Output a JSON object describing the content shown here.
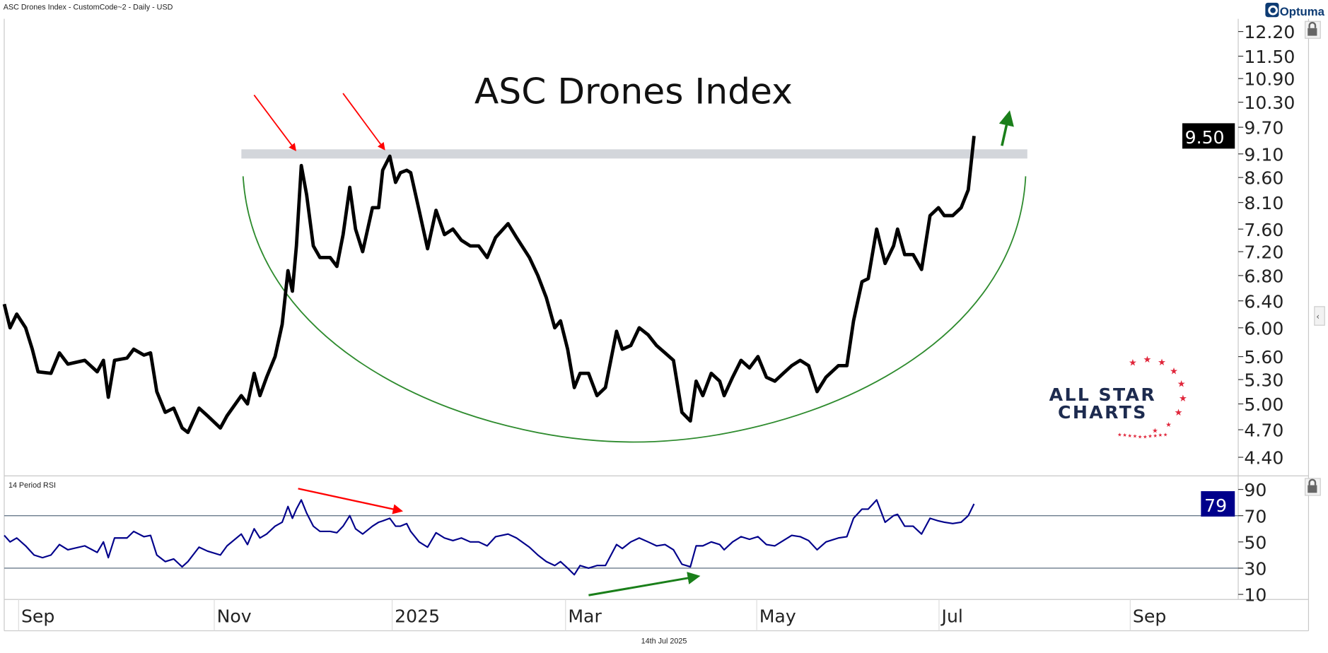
{
  "header": {
    "caption": "ASC Drones Index - CustomCode~2 - Daily - USD",
    "brand": "Optuma"
  },
  "footer": {
    "date": "14th Jul 2025"
  },
  "logo": {
    "line1": "ALL STAR",
    "line2": "CHARTS"
  },
  "colors": {
    "price": "#000000",
    "rsi": "#00008b",
    "arc": "#2e8b2e",
    "band": "#c8ccd2",
    "red_arrow": "#ff0000",
    "green_arrow": "#1a7f1a",
    "rsi_badge": "#00008b",
    "ref_line": "#6b7b8c",
    "logo_text": "#1d2b4f",
    "logo_star": "#e0253a"
  },
  "chart_data": [
    {
      "type": "line",
      "title": "ASC Drones Index",
      "series_name": "ASC Drones Index",
      "scale": "log",
      "ylim": [
        4.4,
        12.2
      ],
      "yticks": [
        "12.20",
        "11.50",
        "10.90",
        "10.30",
        "9.70",
        "9.10",
        "8.60",
        "8.10",
        "7.60",
        "7.20",
        "6.80",
        "6.40",
        "6.00",
        "5.60",
        "5.30",
        "5.00",
        "4.70",
        "4.40"
      ],
      "last_value_label": "9.50",
      "resistance_band": [
        9.0,
        9.2
      ],
      "x_unit": "trading days from early Sep 2024",
      "xticks": [
        {
          "label": "Sep",
          "x": 0
        },
        {
          "label": "Nov",
          "x": 44
        },
        {
          "label": "2025",
          "x": 84
        },
        {
          "label": "Mar",
          "x": 123
        },
        {
          "label": "May",
          "x": 166
        },
        {
          "label": "Jul",
          "x": 207
        },
        {
          "label": "Sep",
          "x": 250
        }
      ],
      "points": [
        [
          -3.8,
          6.35
        ],
        [
          -2.5,
          6.0
        ],
        [
          -1,
          6.2
        ],
        [
          1,
          6.0
        ],
        [
          2.5,
          5.7
        ],
        [
          3.8,
          5.4
        ],
        [
          6.7,
          5.38
        ],
        [
          8.6,
          5.65
        ],
        [
          10.5,
          5.5
        ],
        [
          14.3,
          5.55
        ],
        [
          17.1,
          5.4
        ],
        [
          18.5,
          5.55
        ],
        [
          19.6,
          5.08
        ],
        [
          21,
          5.55
        ],
        [
          23.8,
          5.58
        ],
        [
          25.3,
          5.7
        ],
        [
          27.6,
          5.62
        ],
        [
          29.1,
          5.65
        ],
        [
          30.5,
          5.15
        ],
        [
          32.4,
          4.9
        ],
        [
          34.3,
          4.95
        ],
        [
          36.2,
          4.72
        ],
        [
          37.5,
          4.67
        ],
        [
          40,
          4.95
        ],
        [
          41.9,
          4.86
        ],
        [
          44.8,
          4.72
        ],
        [
          46.3,
          4.86
        ],
        [
          49.5,
          5.1
        ],
        [
          50.9,
          5.0
        ],
        [
          52.4,
          5.38
        ],
        [
          53.7,
          5.1
        ],
        [
          55.2,
          5.33
        ],
        [
          57.1,
          5.6
        ],
        [
          58.7,
          6.05
        ],
        [
          60,
          6.88
        ],
        [
          61,
          6.55
        ],
        [
          61.9,
          7.3
        ],
        [
          63,
          8.85
        ],
        [
          64.2,
          8.25
        ],
        [
          65.7,
          7.3
        ],
        [
          67.2,
          7.1
        ],
        [
          69.5,
          7.1
        ],
        [
          71,
          6.95
        ],
        [
          72.4,
          7.5
        ],
        [
          73.9,
          8.4
        ],
        [
          75.2,
          7.6
        ],
        [
          76.8,
          7.2
        ],
        [
          79,
          8.0
        ],
        [
          80.4,
          8.0
        ],
        [
          81.3,
          8.75
        ],
        [
          82.9,
          9.05
        ],
        [
          84.2,
          8.5
        ],
        [
          85.3,
          8.7
        ],
        [
          86.7,
          8.75
        ],
        [
          87.6,
          8.7
        ],
        [
          89.5,
          7.95
        ],
        [
          91.4,
          7.25
        ],
        [
          93.3,
          7.95
        ],
        [
          95.2,
          7.5
        ],
        [
          97.1,
          7.6
        ],
        [
          99,
          7.4
        ],
        [
          101,
          7.3
        ],
        [
          102.9,
          7.3
        ],
        [
          104.8,
          7.1
        ],
        [
          106.7,
          7.45
        ],
        [
          109.5,
          7.7
        ],
        [
          111.4,
          7.45
        ],
        [
          114.3,
          7.1
        ],
        [
          116.2,
          6.8
        ],
        [
          118.1,
          6.45
        ],
        [
          120,
          6.0
        ],
        [
          121.3,
          6.1
        ],
        [
          122.9,
          5.7
        ],
        [
          124.4,
          5.2
        ],
        [
          125.7,
          5.38
        ],
        [
          127.6,
          5.38
        ],
        [
          129.5,
          5.1
        ],
        [
          131.4,
          5.2
        ],
        [
          133.9,
          5.95
        ],
        [
          135.2,
          5.7
        ],
        [
          137.1,
          5.75
        ],
        [
          139,
          6.0
        ],
        [
          141,
          5.9
        ],
        [
          142.9,
          5.75
        ],
        [
          144.8,
          5.65
        ],
        [
          146.7,
          5.55
        ],
        [
          148.6,
          4.9
        ],
        [
          150.5,
          4.8
        ],
        [
          151.8,
          5.28
        ],
        [
          153.3,
          5.1
        ],
        [
          155.2,
          5.38
        ],
        [
          157.1,
          5.28
        ],
        [
          158.1,
          5.1
        ],
        [
          160,
          5.33
        ],
        [
          161.9,
          5.55
        ],
        [
          163.8,
          5.45
        ],
        [
          165.7,
          5.6
        ],
        [
          167.6,
          5.33
        ],
        [
          169.5,
          5.28
        ],
        [
          171.4,
          5.38
        ],
        [
          173.3,
          5.48
        ],
        [
          175.2,
          5.55
        ],
        [
          177.1,
          5.48
        ],
        [
          179,
          5.15
        ],
        [
          181,
          5.33
        ],
        [
          183.8,
          5.48
        ],
        [
          185.7,
          5.48
        ],
        [
          187.2,
          6.1
        ],
        [
          189.1,
          6.7
        ],
        [
          190.5,
          6.75
        ],
        [
          192.4,
          7.6
        ],
        [
          194.3,
          7.0
        ],
        [
          196.2,
          7.3
        ],
        [
          197.1,
          7.6
        ],
        [
          198.7,
          7.15
        ],
        [
          200.6,
          7.15
        ],
        [
          202.5,
          6.9
        ],
        [
          204.4,
          7.85
        ],
        [
          206.3,
          8.0
        ],
        [
          207.6,
          7.85
        ],
        [
          209.5,
          7.85
        ],
        [
          211.4,
          8.0
        ],
        [
          213,
          8.35
        ],
        [
          214.3,
          9.5
        ]
      ]
    },
    {
      "type": "line",
      "title": "14 Period RSI",
      "ylim": [
        10,
        90
      ],
      "yticks": [
        "90",
        "70",
        "50",
        "30",
        "10"
      ],
      "reference_lines": [
        70,
        30
      ],
      "last_value_label": "79",
      "points": [
        [
          -3.8,
          55
        ],
        [
          -2.5,
          50
        ],
        [
          -1,
          53
        ],
        [
          1,
          47
        ],
        [
          2.9,
          40
        ],
        [
          4.8,
          38
        ],
        [
          6.7,
          40
        ],
        [
          8.6,
          48
        ],
        [
          10.5,
          44
        ],
        [
          14.3,
          47
        ],
        [
          17.1,
          42
        ],
        [
          18.5,
          50
        ],
        [
          19.6,
          38
        ],
        [
          21,
          53
        ],
        [
          23.8,
          53
        ],
        [
          25.3,
          58
        ],
        [
          27.6,
          54
        ],
        [
          29.1,
          55
        ],
        [
          30.5,
          40
        ],
        [
          32.4,
          35
        ],
        [
          34.3,
          37
        ],
        [
          36.2,
          31
        ],
        [
          37.5,
          35
        ],
        [
          40,
          46
        ],
        [
          41.9,
          43
        ],
        [
          44.8,
          40
        ],
        [
          46.3,
          47
        ],
        [
          49.5,
          56
        ],
        [
          50.9,
          48
        ],
        [
          52.4,
          60
        ],
        [
          53.7,
          53
        ],
        [
          55.2,
          56
        ],
        [
          57.1,
          62
        ],
        [
          58.7,
          65
        ],
        [
          60,
          77
        ],
        [
          61,
          68
        ],
        [
          61.9,
          75
        ],
        [
          63,
          82
        ],
        [
          64.2,
          72
        ],
        [
          65.7,
          62
        ],
        [
          67.2,
          58
        ],
        [
          69.5,
          58
        ],
        [
          71,
          57
        ],
        [
          72.4,
          62
        ],
        [
          73.9,
          70
        ],
        [
          75.2,
          60
        ],
        [
          76.8,
          56
        ],
        [
          79,
          62
        ],
        [
          80.4,
          65
        ],
        [
          81.3,
          66
        ],
        [
          82.9,
          68
        ],
        [
          84.2,
          62
        ],
        [
          85.3,
          62
        ],
        [
          86.7,
          64
        ],
        [
          87.6,
          58
        ],
        [
          89.5,
          50
        ],
        [
          91.4,
          46
        ],
        [
          93.3,
          57
        ],
        [
          95.2,
          53
        ],
        [
          97.1,
          51
        ],
        [
          99,
          53
        ],
        [
          101,
          50
        ],
        [
          102.9,
          50
        ],
        [
          104.8,
          47
        ],
        [
          106.7,
          54
        ],
        [
          109.5,
          56
        ],
        [
          111.4,
          53
        ],
        [
          114.3,
          46
        ],
        [
          116.2,
          40
        ],
        [
          118.1,
          35
        ],
        [
          120,
          32
        ],
        [
          121.3,
          35
        ],
        [
          122.9,
          30
        ],
        [
          124.4,
          25
        ],
        [
          125.7,
          32
        ],
        [
          127.6,
          30
        ],
        [
          129.5,
          32
        ],
        [
          131.4,
          32
        ],
        [
          133.9,
          48
        ],
        [
          135.2,
          45
        ],
        [
          137.1,
          50
        ],
        [
          139,
          53
        ],
        [
          141,
          50
        ],
        [
          142.9,
          47
        ],
        [
          144.8,
          48
        ],
        [
          146.7,
          44
        ],
        [
          148.6,
          33
        ],
        [
          150.5,
          31
        ],
        [
          151.8,
          47
        ],
        [
          153.3,
          47
        ],
        [
          155.2,
          50
        ],
        [
          157.1,
          48
        ],
        [
          158.1,
          44
        ],
        [
          160,
          50
        ],
        [
          161.9,
          54
        ],
        [
          163.8,
          52
        ],
        [
          165.7,
          54
        ],
        [
          167.6,
          48
        ],
        [
          169.5,
          47
        ],
        [
          171.4,
          51
        ],
        [
          173.3,
          55
        ],
        [
          175.2,
          54
        ],
        [
          177.1,
          51
        ],
        [
          179,
          44
        ],
        [
          181,
          50
        ],
        [
          183.8,
          53
        ],
        [
          185.7,
          54
        ],
        [
          187.2,
          68
        ],
        [
          189.1,
          75
        ],
        [
          190.5,
          75
        ],
        [
          192.4,
          82
        ],
        [
          194.3,
          65
        ],
        [
          196.2,
          70
        ],
        [
          197.1,
          71
        ],
        [
          198.7,
          62
        ],
        [
          200.6,
          62
        ],
        [
          202.5,
          56
        ],
        [
          204.4,
          68
        ],
        [
          206.3,
          66
        ],
        [
          207.6,
          65
        ],
        [
          209.5,
          64
        ],
        [
          211.4,
          65
        ],
        [
          213,
          70
        ],
        [
          214.3,
          79
        ]
      ]
    }
  ]
}
